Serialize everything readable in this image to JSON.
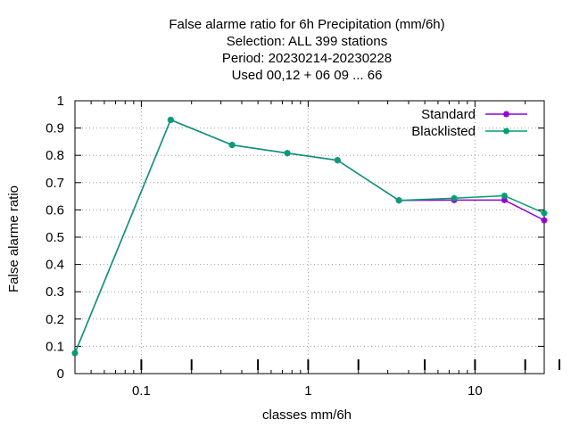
{
  "chart_data": {
    "type": "line",
    "title_lines": [
      "False alarme ratio  for 6h Precipitation (mm/6h)",
      "Selection: ALL    399 stations",
      "Period: 20230214-20230228",
      "Used  00,12  + 06 09 ... 66"
    ],
    "xlabel": "classes mm/6h",
    "ylabel": "False alarme ratio",
    "x_scale": "log",
    "xlim": [
      0.04,
      26
    ],
    "ylim": [
      0,
      1
    ],
    "x_ticks": [
      0.1,
      1,
      10
    ],
    "x_tick_labels": [
      "0.1",
      "1",
      "10"
    ],
    "y_ticks": [
      0,
      0.1,
      0.2,
      0.3,
      0.4,
      0.5,
      0.6,
      0.7,
      0.8,
      0.9,
      1
    ],
    "y_tick_labels": [
      "0",
      "0.1",
      "0.2",
      "0.3",
      "0.4",
      "0.5",
      "0.6",
      "0.7",
      "0.8",
      "0.9",
      "1"
    ],
    "grid": true,
    "legend_position": "top-right",
    "series": [
      {
        "name": "Standard",
        "color": "#9400d3",
        "x": [
          0.04,
          0.15,
          0.35,
          0.75,
          1.5,
          3.5,
          7.5,
          15,
          26
        ],
        "y": [
          0.075,
          0.93,
          0.838,
          0.808,
          0.782,
          0.635,
          0.636,
          0.636,
          0.562
        ]
      },
      {
        "name": "Blacklisted",
        "color": "#009e73",
        "x": [
          0.04,
          0.15,
          0.35,
          0.75,
          1.5,
          3.5,
          7.5,
          15,
          26
        ],
        "y": [
          0.075,
          0.93,
          0.838,
          0.808,
          0.782,
          0.635,
          0.643,
          0.652,
          0.588
        ]
      }
    ]
  }
}
